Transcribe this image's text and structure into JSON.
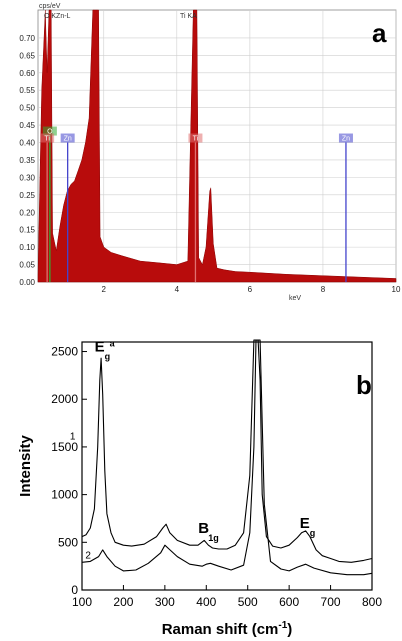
{
  "chart_data": [
    {
      "type": "area",
      "panel_label": "a",
      "ylabel": "cps/eV",
      "xlabel": "keV",
      "xlim": [
        0.2,
        10.0
      ],
      "ylim": [
        0,
        0.78
      ],
      "x_ticks": [
        "2",
        "4",
        "6",
        "8",
        "10"
      ],
      "y_ticks": [
        "0.00",
        "0.05",
        "0.10",
        "0.15",
        "0.20",
        "0.25",
        "0.30",
        "0.35",
        "0.40",
        "0.45",
        "0.50",
        "0.55",
        "0.60",
        "0.65",
        "0.70"
      ],
      "grid": true,
      "fill_color": "#b80c0c",
      "series": [
        {
          "x": [
            0.2,
            0.3,
            0.4,
            0.45,
            0.5,
            0.53,
            0.56,
            0.6,
            0.7,
            0.8,
            0.9,
            1.0,
            1.1,
            1.2,
            1.3,
            1.4,
            1.5,
            1.6,
            1.7,
            1.74,
            1.78,
            1.82,
            1.86,
            1.9,
            2.0,
            2.2,
            2.5,
            3.0,
            3.5,
            4.0,
            4.3,
            4.45,
            4.51,
            4.55,
            4.6,
            4.7,
            4.8,
            4.9,
            4.93,
            5.0,
            5.1,
            5.3,
            5.6,
            6.0,
            7.0,
            8.0,
            9.0,
            10.0
          ],
          "y": [
            0.02,
            0.55,
            0.78,
            0.6,
            0.78,
            0.78,
            0.78,
            0.14,
            0.09,
            0.16,
            0.22,
            0.26,
            0.28,
            0.29,
            0.32,
            0.35,
            0.4,
            0.47,
            0.78,
            0.78,
            0.78,
            0.78,
            0.78,
            0.13,
            0.1,
            0.085,
            0.075,
            0.06,
            0.055,
            0.05,
            0.06,
            0.78,
            0.78,
            0.78,
            0.07,
            0.05,
            0.1,
            0.26,
            0.27,
            0.11,
            0.04,
            0.035,
            0.03,
            0.028,
            0.022,
            0.018,
            0.014,
            0.01
          ]
        }
      ],
      "element_markers": [
        {
          "label": "O",
          "x": 0.525,
          "height": 0.42,
          "color": "#33aa33"
        },
        {
          "label": "Ti",
          "x": 0.45,
          "height": 0.4,
          "color": "#e07070"
        },
        {
          "label": "Zn",
          "x": 1.012,
          "height": 0.4,
          "color": "#4444cc"
        },
        {
          "label": "Ti",
          "x": 4.51,
          "height": 0.4,
          "color": "#e07070"
        },
        {
          "label": "Zn",
          "x": 8.63,
          "height": 0.4,
          "color": "#4444cc"
        }
      ],
      "header_labels": [
        "O KZn-L",
        "Ti KA"
      ]
    },
    {
      "type": "line",
      "panel_label": "b",
      "xlabel": "Raman shift (cm-1)",
      "ylabel": "Intensity",
      "xlim": [
        100,
        800
      ],
      "ylim": [
        0,
        2600
      ],
      "x_ticks": [
        100,
        200,
        300,
        400,
        500,
        600,
        700,
        800
      ],
      "y_ticks": [
        0,
        500,
        1000,
        1500,
        2000,
        2500
      ],
      "grid": false,
      "peak_labels": [
        {
          "main": "E",
          "sub": "g",
          "sup": "a",
          "x": 145,
          "y": 2500
        },
        {
          "main": "B",
          "sub": "1g",
          "x": 395,
          "y": 600
        },
        {
          "main": "E",
          "sub": "g",
          "x": 640,
          "y": 650
        }
      ],
      "series": [
        {
          "name": "1",
          "x": [
            100,
            110,
            120,
            130,
            138,
            143,
            146,
            150,
            155,
            160,
            170,
            180,
            200,
            220,
            250,
            280,
            295,
            303,
            312,
            330,
            360,
            380,
            395,
            405,
            415,
            430,
            450,
            470,
            490,
            505,
            515,
            520,
            525,
            530,
            535,
            545,
            560,
            580,
            600,
            620,
            630,
            640,
            650,
            665,
            680,
            700,
            720,
            750,
            780,
            800
          ],
          "y": [
            560,
            580,
            650,
            850,
            1500,
            2200,
            2430,
            2050,
            1250,
            800,
            600,
            500,
            470,
            460,
            480,
            560,
            650,
            690,
            600,
            520,
            470,
            470,
            520,
            470,
            440,
            430,
            430,
            470,
            600,
            1200,
            2650,
            2650,
            2650,
            2200,
            1000,
            560,
            460,
            440,
            470,
            550,
            600,
            620,
            560,
            420,
            360,
            330,
            300,
            290,
            310,
            330
          ]
        },
        {
          "name": "2",
          "x": [
            100,
            120,
            140,
            150,
            160,
            180,
            200,
            230,
            260,
            290,
            300,
            310,
            330,
            360,
            390,
            400,
            410,
            430,
            460,
            490,
            505,
            515,
            520,
            525,
            530,
            540,
            555,
            580,
            600,
            620,
            640,
            660,
            700,
            740,
            780,
            800
          ],
          "y": [
            290,
            300,
            350,
            420,
            350,
            250,
            200,
            210,
            280,
            390,
            470,
            430,
            350,
            270,
            250,
            270,
            280,
            250,
            210,
            260,
            600,
            1500,
            2650,
            2650,
            2650,
            900,
            300,
            220,
            200,
            240,
            270,
            230,
            180,
            160,
            160,
            175
          ]
        }
      ]
    }
  ]
}
